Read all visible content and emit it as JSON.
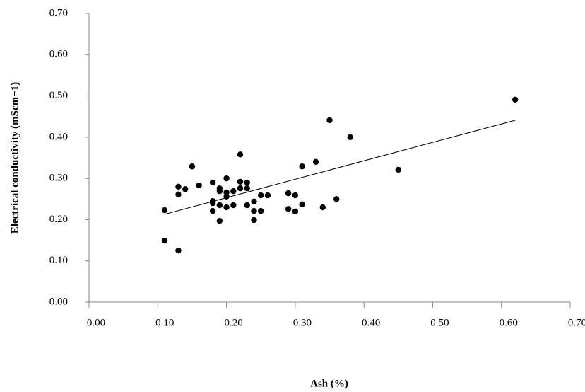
{
  "chart_data": {
    "type": "scatter",
    "x_label": "Ash (%)",
    "y_label": "Electrical conductivity  (mScm−1)",
    "xlim": [
      0,
      0.7
    ],
    "ylim": [
      0,
      0.7
    ],
    "xticks": [
      {
        "value": 0,
        "label": "0.00"
      },
      {
        "value": 0.1,
        "label": "0.10"
      },
      {
        "value": 0.2,
        "label": "0.20"
      },
      {
        "value": 0.3,
        "label": "0.30"
      },
      {
        "value": 0.4,
        "label": "0.40"
      },
      {
        "value": 0.5,
        "label": "0.50"
      },
      {
        "value": 0.6,
        "label": "0.60"
      },
      {
        "value": 0.7,
        "label": "0.70"
      }
    ],
    "yticks": [
      {
        "value": 0,
        "label": "0.00"
      },
      {
        "value": 0.1,
        "label": "0.10"
      },
      {
        "value": 0.2,
        "label": "0.20"
      },
      {
        "value": 0.3,
        "label": "0.30"
      },
      {
        "value": 0.4,
        "label": "0.40"
      },
      {
        "value": 0.5,
        "label": "0.50"
      },
      {
        "value": 0.6,
        "label": "0.60"
      },
      {
        "value": 0.7,
        "label": "0.70"
      }
    ],
    "color": "#000000",
    "x": [
      0.11,
      0.11,
      0.13,
      0.13,
      0.13,
      0.14,
      0.15,
      0.16,
      0.18,
      0.18,
      0.18,
      0.18,
      0.19,
      0.19,
      0.19,
      0.19,
      0.2,
      0.2,
      0.2,
      0.2,
      0.21,
      0.21,
      0.22,
      0.22,
      0.22,
      0.23,
      0.23,
      0.23,
      0.24,
      0.24,
      0.24,
      0.25,
      0.25,
      0.26,
      0.29,
      0.29,
      0.3,
      0.3,
      0.31,
      0.31,
      0.33,
      0.34,
      0.35,
      0.36,
      0.38,
      0.45,
      0.62
    ],
    "y": [
      0.223,
      0.149,
      0.125,
      0.28,
      0.261,
      0.274,
      0.329,
      0.283,
      0.29,
      0.24,
      0.221,
      0.245,
      0.269,
      0.235,
      0.197,
      0.276,
      0.3,
      0.256,
      0.23,
      0.266,
      0.269,
      0.235,
      0.358,
      0.292,
      0.276,
      0.29,
      0.276,
      0.235,
      0.244,
      0.221,
      0.199,
      0.259,
      0.221,
      0.259,
      0.264,
      0.226,
      0.259,
      0.22,
      0.329,
      0.237,
      0.34,
      0.23,
      0.441,
      0.25,
      0.4,
      0.321,
      0.491
    ],
    "trendline": {
      "color": "#000000",
      "x": [
        0.11,
        0.62
      ],
      "y": [
        0.213,
        0.441
      ]
    }
  }
}
